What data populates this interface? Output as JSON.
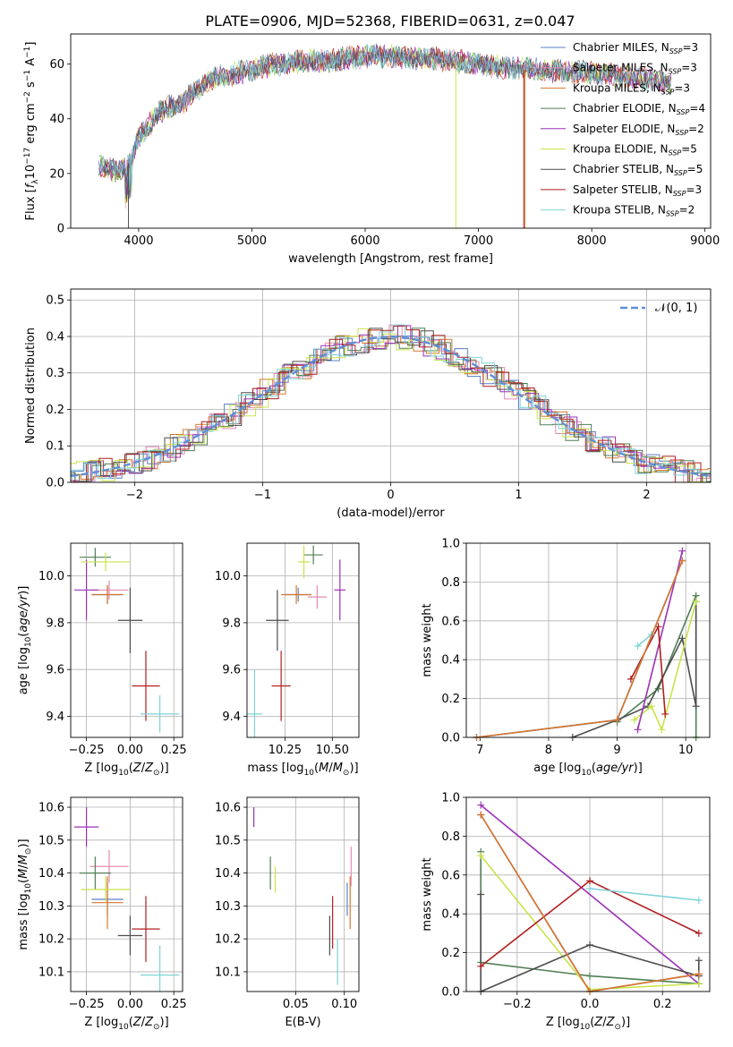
{
  "figure_title": "PLATE=0906, MJD=52368, FIBERID=0631, z=0.047",
  "colors": {
    "Chabrier MILES": "#5a7fc6",
    "Salpeter MILES": "#e58ab5",
    "Kroupa MILES": "#d4782d",
    "Chabrier ELODIE": "#4f7f55",
    "Salpeter ELODIE": "#9c31b8",
    "Kroupa ELODIE": "#c9e44a",
    "Chabrier STELIB": "#4d4d4d",
    "Salpeter STELIB": "#b01e1e",
    "Kroupa STELIB": "#7fd3d8",
    "normal": "#5d8fd8"
  },
  "chart_data": [
    {
      "id": "spectrum",
      "type": "line",
      "title": "PLATE=0906, MJD=52368, FIBERID=0631, z=0.047",
      "xlabel": "wavelength [Angstrom, rest frame]",
      "ylabel": "Flux [f_λ 10^-17 erg cm^-2 s^-1 A^-1]",
      "xlim": [
        3400,
        9050
      ],
      "ylim": [
        0,
        71
      ],
      "xticks": [
        "4000",
        "5000",
        "6000",
        "7000",
        "8000",
        "9000"
      ],
      "yticks": [
        "0",
        "20",
        "40",
        "60"
      ],
      "grid": false,
      "legend_position": "upper right",
      "legend": [
        {
          "name": "Chabrier MILES",
          "nssp": "3"
        },
        {
          "name": "Salpeter MILES",
          "nssp": "3"
        },
        {
          "name": "Kroupa MILES",
          "nssp": "3"
        },
        {
          "name": "Chabrier ELODIE",
          "nssp": "4"
        },
        {
          "name": "Salpeter ELODIE",
          "nssp": "2"
        },
        {
          "name": "Kroupa ELODIE",
          "nssp": "5"
        },
        {
          "name": "Chabrier STELIB",
          "nssp": "5"
        },
        {
          "name": "Salpeter STELIB",
          "nssp": "3"
        },
        {
          "name": "Kroupa STELIB",
          "nssp": "2"
        }
      ],
      "continuum": [
        [
          3650,
          23
        ],
        [
          3700,
          22
        ],
        [
          3800,
          21
        ],
        [
          3900,
          23
        ],
        [
          3950,
          27
        ],
        [
          4000,
          33
        ],
        [
          4100,
          38
        ],
        [
          4200,
          43
        ],
        [
          4300,
          45
        ],
        [
          4400,
          46
        ],
        [
          4500,
          50
        ],
        [
          4600,
          54
        ],
        [
          4700,
          55
        ],
        [
          4800,
          56
        ],
        [
          4900,
          57
        ],
        [
          5000,
          58
        ],
        [
          5100,
          59
        ],
        [
          5200,
          60
        ],
        [
          5300,
          60
        ],
        [
          5400,
          61
        ],
        [
          5600,
          61
        ],
        [
          5800,
          62
        ],
        [
          6000,
          63
        ],
        [
          6200,
          63
        ],
        [
          6400,
          62
        ],
        [
          6600,
          62
        ],
        [
          6800,
          61
        ],
        [
          7000,
          60
        ],
        [
          7200,
          59
        ],
        [
          7400,
          58
        ],
        [
          7600,
          58
        ],
        [
          7800,
          57
        ],
        [
          8000,
          57
        ],
        [
          8200,
          56
        ],
        [
          8400,
          55
        ],
        [
          8600,
          54
        ],
        [
          8700,
          53
        ]
      ],
      "features": [
        {
          "name": "Salpeter STELIB",
          "x": 7400,
          "to": 0
        },
        {
          "name": "Kroupa ELODIE",
          "x": 6800,
          "to": 0
        },
        {
          "name": "Kroupa MILES",
          "x": 7410,
          "to": 0
        },
        {
          "name": "Chabrier STELIB",
          "x": 3910,
          "to": 0
        }
      ]
    },
    {
      "id": "residuals",
      "type": "histogram",
      "xlabel": "(data-model)/error",
      "ylabel": "Normed distribution",
      "xlim": [
        -2.5,
        2.5
      ],
      "ylim": [
        0,
        0.53
      ],
      "xticks": [
        "−2",
        "−1",
        "0",
        "1",
        "2"
      ],
      "yticks": [
        "0.0",
        "0.1",
        "0.2",
        "0.3",
        "0.4",
        "0.5"
      ],
      "grid": true,
      "legend_position": "upper right",
      "legend": [
        {
          "name": "𝒩(0, 1)",
          "style": "dashed"
        }
      ],
      "bin_width": 0.1,
      "bin_start": -2.5
    },
    {
      "id": "age_vs_Z",
      "type": "scatter",
      "xlabel": "Z [log10(Z/Z⊙)]",
      "ylabel": "age [log10(age/yr)]",
      "xlim": [
        -0.34,
        0.3
      ],
      "ylim": [
        9.31,
        10.14
      ],
      "xticks": [
        "−0.25",
        "0.00",
        "0.25"
      ],
      "yticks": [
        "9.4",
        "9.6",
        "9.8",
        "10.0"
      ],
      "grid": true,
      "points": [
        {
          "name": "Chabrier MILES",
          "x": -0.13,
          "y": 9.92,
          "xerr": 0.09,
          "yerr": 0.04
        },
        {
          "name": "Salpeter MILES",
          "x": -0.12,
          "y": 9.94,
          "xerr": 0.11,
          "yerr": 0.04
        },
        {
          "name": "Kroupa MILES",
          "x": -0.13,
          "y": 9.92,
          "xerr": 0.09,
          "yerr": 0.04
        },
        {
          "name": "Chabrier ELODIE",
          "x": -0.2,
          "y": 10.08,
          "xerr": 0.09,
          "yerr": 0.04
        },
        {
          "name": "Salpeter ELODIE",
          "x": -0.25,
          "y": 9.94,
          "xerr": 0.07,
          "yerr": 0.13
        },
        {
          "name": "Kroupa ELODIE",
          "x": -0.14,
          "y": 10.06,
          "xerr": 0.14,
          "yerr": 0.04
        },
        {
          "name": "Chabrier STELIB",
          "x": 0.0,
          "y": 9.81,
          "xerr": 0.07,
          "yerr": 0.14
        },
        {
          "name": "Salpeter STELIB",
          "x": 0.09,
          "y": 9.53,
          "xerr": 0.08,
          "yerr": 0.15
        },
        {
          "name": "Kroupa STELIB",
          "x": 0.17,
          "y": 9.41,
          "xerr": 0.11,
          "yerr": 0.08
        }
      ]
    },
    {
      "id": "age_vs_mass",
      "type": "scatter",
      "xlabel": "mass [log10(M/M⊙)]",
      "ylabel": "",
      "xlim": [
        10.05,
        10.64
      ],
      "ylim": [
        9.31,
        10.14
      ],
      "xticks": [
        "10.25",
        "10.50"
      ],
      "yticks": [
        "9.4",
        "9.6",
        "9.8",
        "10.0"
      ],
      "grid": true,
      "points": [
        {
          "name": "Chabrier MILES",
          "x": 10.32,
          "y": 9.92,
          "xerr": 0.07,
          "yerr": 0.03
        },
        {
          "name": "Salpeter MILES",
          "x": 10.42,
          "y": 9.91,
          "xerr": 0.05,
          "yerr": 0.05
        },
        {
          "name": "Kroupa MILES",
          "x": 10.31,
          "y": 9.92,
          "xerr": 0.08,
          "yerr": 0.04
        },
        {
          "name": "Chabrier ELODIE",
          "x": 10.4,
          "y": 10.09,
          "xerr": 0.05,
          "yerr": 0.04
        },
        {
          "name": "Salpeter ELODIE",
          "x": 10.54,
          "y": 9.94,
          "xerr": 0.03,
          "yerr": 0.13
        },
        {
          "name": "Kroupa ELODIE",
          "x": 10.35,
          "y": 10.06,
          "xerr": 0.03,
          "yerr": 0.07
        },
        {
          "name": "Chabrier STELIB",
          "x": 10.21,
          "y": 9.81,
          "xerr": 0.06,
          "yerr": 0.13
        },
        {
          "name": "Salpeter STELIB",
          "x": 10.23,
          "y": 9.53,
          "xerr": 0.05,
          "yerr": 0.15
        },
        {
          "name": "Kroupa STELIB",
          "x": 10.09,
          "y": 9.41,
          "xerr": 0.04,
          "yerr": 0.19
        }
      ]
    },
    {
      "id": "weight_vs_age",
      "type": "line",
      "xlabel": "age [log10(age/yr)]",
      "ylabel": "mass weight",
      "xlim": [
        6.8,
        10.35
      ],
      "ylim": [
        0,
        1
      ],
      "xticks": [
        "7",
        "8",
        "9",
        "10"
      ],
      "yticks": [
        "0.0",
        "0.2",
        "0.4",
        "0.6",
        "0.8",
        "1.0"
      ],
      "grid": true,
      "series": [
        {
          "name": "Chabrier ELODIE",
          "x": [
            9.0,
            9.6,
            10.15,
            10.15
          ],
          "y": [
            0.08,
            0.25,
            0.73,
            0.0
          ]
        },
        {
          "name": "Chabrier STELIB",
          "x": [
            8.35,
            9.0,
            9.45,
            9.95,
            10.15,
            10.15
          ],
          "y": [
            0.0,
            0.09,
            0.16,
            0.51,
            0.16,
            0.7
          ]
        },
        {
          "name": "Kroupa ELODIE",
          "x": [
            9.25,
            9.5,
            9.65,
            10.15
          ],
          "y": [
            0.09,
            0.16,
            0.04,
            0.7
          ]
        },
        {
          "name": "Salpeter ELODIE",
          "x": [
            9.3,
            9.95
          ],
          "y": [
            0.04,
            0.96
          ]
        },
        {
          "name": "Salpeter STELIB",
          "x": [
            9.2,
            9.6,
            9.7
          ],
          "y": [
            0.3,
            0.57,
            0.12
          ]
        },
        {
          "name": "Kroupa STELIB",
          "x": [
            9.3,
            9.5
          ],
          "y": [
            0.47,
            0.53
          ]
        },
        {
          "name": "Salpeter MILES",
          "x": [
            6.95,
            9.0,
            9.95
          ],
          "y": [
            0.0,
            0.09,
            0.91
          ]
        },
        {
          "name": "Chabrier MILES",
          "x": [
            6.95,
            9.0,
            9.95
          ],
          "y": [
            0.0,
            0.09,
            0.91
          ]
        },
        {
          "name": "Kroupa MILES",
          "x": [
            6.95,
            9.0,
            9.95
          ],
          "y": [
            0.0,
            0.09,
            0.91
          ]
        }
      ]
    },
    {
      "id": "mass_vs_Z",
      "type": "scatter",
      "xlabel": "Z [log10(Z/Z⊙)]",
      "ylabel": "mass [log10(M/M⊙)]",
      "xlim": [
        -0.34,
        0.3
      ],
      "ylim": [
        10.04,
        10.63
      ],
      "xticks": [
        "−0.25",
        "0.00",
        "0.25"
      ],
      "yticks": [
        "10.1",
        "10.2",
        "10.3",
        "10.4",
        "10.5",
        "10.6"
      ],
      "grid": true,
      "points": [
        {
          "name": "Chabrier MILES",
          "x": -0.13,
          "y": 10.32,
          "xerr": 0.09,
          "yerr": 0.05
        },
        {
          "name": "Salpeter MILES",
          "x": -0.12,
          "y": 10.42,
          "xerr": 0.11,
          "yerr": 0.05
        },
        {
          "name": "Kroupa MILES",
          "x": -0.13,
          "y": 10.31,
          "xerr": 0.09,
          "yerr": 0.08
        },
        {
          "name": "Chabrier ELODIE",
          "x": -0.2,
          "y": 10.4,
          "xerr": 0.09,
          "yerr": 0.05
        },
        {
          "name": "Salpeter ELODIE",
          "x": -0.25,
          "y": 10.54,
          "xerr": 0.07,
          "yerr": 0.06
        },
        {
          "name": "Kroupa ELODIE",
          "x": -0.14,
          "y": 10.35,
          "xerr": 0.14,
          "yerr": 0.04
        },
        {
          "name": "Chabrier STELIB",
          "x": 0.0,
          "y": 10.21,
          "xerr": 0.07,
          "yerr": 0.06
        },
        {
          "name": "Salpeter STELIB",
          "x": 0.09,
          "y": 10.23,
          "xerr": 0.08,
          "yerr": 0.1
        },
        {
          "name": "Kroupa STELIB",
          "x": 0.17,
          "y": 10.09,
          "xerr": 0.11,
          "yerr": 0.09
        }
      ]
    },
    {
      "id": "mass_vs_ebv",
      "type": "scatter",
      "xlabel": "E(B-V)",
      "ylabel": "",
      "xlim": [
        0.0,
        0.115
      ],
      "ylim": [
        10.04,
        10.63
      ],
      "xticks": [
        "0.05",
        "0.10"
      ],
      "yticks": [
        "10.1",
        "10.2",
        "10.3",
        "10.4",
        "10.5",
        "10.6"
      ],
      "grid": true,
      "points": [
        {
          "name": "Chabrier MILES",
          "x": 0.103,
          "y": 10.32,
          "xerr": 0,
          "yerr": 0.05
        },
        {
          "name": "Salpeter MILES",
          "x": 0.107,
          "y": 10.42,
          "xerr": 0,
          "yerr": 0.06
        },
        {
          "name": "Kroupa MILES",
          "x": 0.106,
          "y": 10.31,
          "xerr": 0,
          "yerr": 0.08
        },
        {
          "name": "Chabrier ELODIE",
          "x": 0.024,
          "y": 10.4,
          "xerr": 0,
          "yerr": 0.05
        },
        {
          "name": "Salpeter ELODIE",
          "x": 0.007,
          "y": 10.57,
          "xerr": 0,
          "yerr": 0.03
        },
        {
          "name": "Kroupa ELODIE",
          "x": 0.029,
          "y": 10.38,
          "xerr": 0,
          "yerr": 0.04
        },
        {
          "name": "Chabrier STELIB",
          "x": 0.085,
          "y": 10.21,
          "xerr": 0,
          "yerr": 0.06
        },
        {
          "name": "Salpeter STELIB",
          "x": 0.088,
          "y": 10.25,
          "xerr": 0,
          "yerr": 0.08
        },
        {
          "name": "Kroupa STELIB",
          "x": 0.093,
          "y": 10.13,
          "xerr": 0,
          "yerr": 0.07
        }
      ]
    },
    {
      "id": "weight_vs_Z",
      "type": "line",
      "xlabel": "Z [log10(Z/Z⊙)]",
      "ylabel": "mass weight",
      "xlim": [
        -0.34,
        0.33
      ],
      "ylim": [
        0,
        1
      ],
      "xticks": [
        "−0.2",
        "0.0",
        "0.2"
      ],
      "yticks": [
        "0.0",
        "0.2",
        "0.4",
        "0.6",
        "0.8",
        "1.0"
      ],
      "grid": true,
      "series": [
        {
          "name": "Salpeter ELODIE",
          "x": [
            -0.3,
            0.3
          ],
          "y": [
            0.96,
            0.04
          ]
        },
        {
          "name": "Chabrier ELODIE",
          "x": [
            -0.3,
            -0.3,
            0.0,
            0.3
          ],
          "y": [
            0.72,
            0.15,
            0.08,
            0.04
          ]
        },
        {
          "name": "Kroupa ELODIE",
          "x": [
            -0.3,
            0.0,
            0.3
          ],
          "y": [
            0.7,
            0.01,
            0.04
          ]
        },
        {
          "name": "Chabrier STELIB",
          "x": [
            -0.3,
            -0.3,
            0.0,
            0.3,
            0.3
          ],
          "y": [
            0.5,
            0.0,
            0.24,
            0.08,
            0.16
          ]
        },
        {
          "name": "Salpeter STELIB",
          "x": [
            -0.3,
            0.0,
            0.3
          ],
          "y": [
            0.13,
            0.57,
            0.3
          ]
        },
        {
          "name": "Kroupa STELIB",
          "x": [
            0.0,
            0.3
          ],
          "y": [
            0.53,
            0.47
          ]
        },
        {
          "name": "Chabrier MILES",
          "x": [
            -0.3,
            0.0,
            0.3
          ],
          "y": [
            0.91,
            0.0,
            0.09
          ]
        },
        {
          "name": "Salpeter MILES",
          "x": [
            -0.3,
            0.0,
            0.3
          ],
          "y": [
            0.91,
            0.0,
            0.09
          ]
        },
        {
          "name": "Kroupa MILES",
          "x": [
            -0.3,
            0.0,
            0.3
          ],
          "y": [
            0.91,
            0.0,
            0.09
          ]
        }
      ]
    }
  ]
}
